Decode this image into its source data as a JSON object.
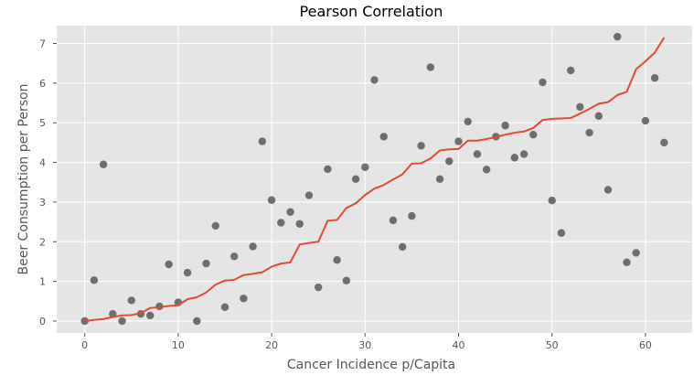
{
  "chart_data": {
    "type": "scatter",
    "title": "Pearson Correlation",
    "xlabel": "Cancer Incidence p/Capita",
    "ylabel": "Beer Consumption per Person",
    "xlim": [
      -3,
      65
    ],
    "ylim": [
      -0.3,
      7.45
    ],
    "xticks": [
      0,
      10,
      20,
      30,
      40,
      50,
      60
    ],
    "yticks": [
      0,
      1,
      2,
      3,
      4,
      5,
      6,
      7
    ],
    "grid": true,
    "colors": {
      "background": "#e5e5e5",
      "grid": "#ffffff",
      "points": "#6e6e6e",
      "line": "#e24a33"
    },
    "scatter_x": [
      0,
      1,
      2,
      3,
      4,
      5,
      6,
      7,
      8,
      9,
      10,
      11,
      12,
      13,
      14,
      15,
      16,
      17,
      18,
      19,
      20,
      21,
      22,
      23,
      24,
      25,
      26,
      27,
      28,
      29,
      30,
      31,
      32,
      33,
      34,
      35,
      36,
      37,
      38,
      39,
      40,
      41,
      42,
      43,
      44,
      45,
      46,
      47,
      48,
      49,
      50,
      51,
      52,
      53,
      54,
      55,
      56,
      57,
      58,
      59,
      60,
      61,
      62
    ],
    "scatter_y": [
      0.0,
      1.03,
      3.95,
      0.18,
      0.0,
      0.52,
      0.18,
      0.14,
      0.37,
      1.43,
      0.47,
      1.22,
      0.0,
      1.45,
      2.4,
      0.35,
      1.63,
      0.57,
      1.88,
      4.53,
      3.05,
      2.48,
      2.75,
      2.45,
      3.17,
      0.85,
      3.83,
      1.54,
      1.02,
      3.58,
      3.88,
      6.08,
      4.65,
      2.54,
      1.87,
      2.65,
      4.42,
      6.4,
      3.58,
      4.03,
      4.53,
      5.03,
      4.21,
      3.82,
      4.65,
      4.93,
      4.12,
      4.21,
      4.7,
      6.02,
      3.04,
      2.22,
      6.32,
      5.4,
      4.75,
      5.17,
      3.31,
      7.17,
      1.48,
      1.72,
      5.05,
      6.13,
      4.5
    ],
    "line_x": [
      0,
      1,
      2,
      3,
      4,
      5,
      6,
      7,
      8,
      9,
      10,
      11,
      12,
      13,
      14,
      15,
      16,
      17,
      18,
      19,
      20,
      21,
      22,
      23,
      24,
      25,
      26,
      27,
      28,
      29,
      30,
      31,
      32,
      33,
      34,
      35,
      36,
      37,
      38,
      39,
      40,
      41,
      42,
      43,
      44,
      45,
      46,
      47,
      48,
      49,
      50,
      51,
      52,
      53,
      54,
      55,
      56,
      57,
      58,
      59,
      60,
      61,
      62
    ],
    "line_y": [
      0.0,
      0.03,
      0.05,
      0.1,
      0.14,
      0.15,
      0.2,
      0.33,
      0.35,
      0.38,
      0.4,
      0.55,
      0.6,
      0.72,
      0.92,
      1.02,
      1.04,
      1.16,
      1.19,
      1.23,
      1.37,
      1.45,
      1.48,
      1.93,
      1.97,
      2.0,
      2.53,
      2.55,
      2.85,
      2.97,
      3.18,
      3.34,
      3.43,
      3.57,
      3.7,
      3.97,
      3.98,
      4.1,
      4.3,
      4.33,
      4.34,
      4.55,
      4.55,
      4.59,
      4.64,
      4.7,
      4.75,
      4.78,
      4.87,
      5.07,
      5.1,
      5.11,
      5.12,
      5.23,
      5.35,
      5.48,
      5.52,
      5.7,
      5.78,
      6.35,
      6.55,
      6.77,
      7.15
    ]
  }
}
